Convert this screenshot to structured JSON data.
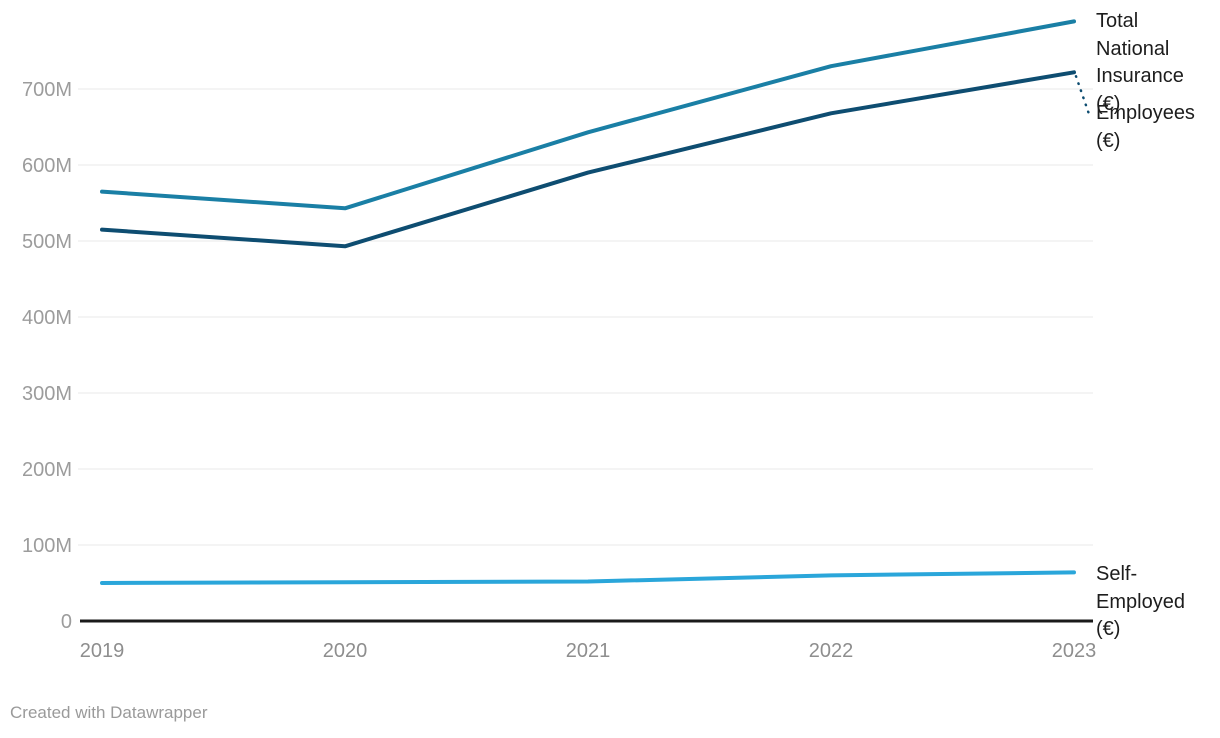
{
  "footer": {
    "credit": "Created with Datawrapper"
  },
  "colors": {
    "total_line": "#1a7fa5",
    "employees_line": "#0e4d71",
    "self_employed_line": "#2aa6da",
    "gridline": "#e9e9e9",
    "baseline": "#1a1a1a",
    "y_tick_text": "#9c9c9c",
    "x_tick_text": "#8e8e8e",
    "label_text": "#1d1d1d",
    "credit_text": "#9a9a9a"
  },
  "chart_data": {
    "type": "line",
    "title": "",
    "xlabel": "",
    "ylabel": "",
    "unit": "€ (values in millions)",
    "grid": "horizontal",
    "legend_position": "direct-labels-right",
    "categories": [
      "2019",
      "2020",
      "2021",
      "2022",
      "2023"
    ],
    "series": [
      {
        "name": "Total National Insurance (€)",
        "color": "#1a7fa5",
        "values": [
          565,
          543,
          643,
          730,
          789
        ]
      },
      {
        "name": "Employees (€)",
        "color": "#0e4d71",
        "values": [
          515,
          493,
          590,
          668,
          722
        ],
        "leader_line": true
      },
      {
        "name": "Self-Employed (€)",
        "color": "#2aa6da",
        "values": [
          50,
          51,
          52,
          60,
          64
        ]
      }
    ],
    "y_ticks": {
      "values": [
        0,
        100,
        200,
        300,
        400,
        500,
        600,
        700
      ],
      "labels": [
        "0",
        "100M",
        "200M",
        "300M",
        "400M",
        "500M",
        "600M",
        "700M"
      ]
    },
    "ylim": [
      0,
      800
    ]
  }
}
